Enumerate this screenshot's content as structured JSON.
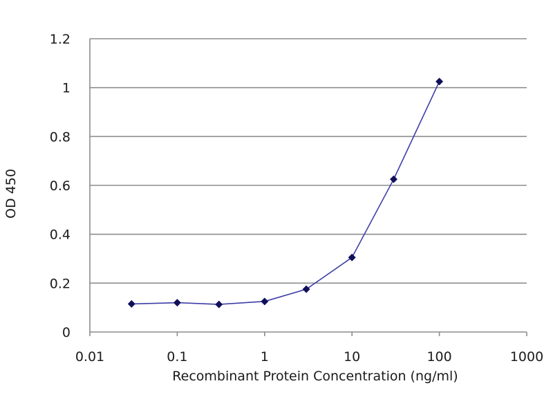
{
  "chart_data": {
    "type": "line",
    "xscale": "log",
    "xlabel": "Recombinant Protein Concentration (ng/ml)",
    "ylabel": "OD 450",
    "xlim": [
      0.01,
      1000
    ],
    "ylim": [
      0,
      1.2
    ],
    "x_ticks": [
      "0.01",
      "0.1",
      "1",
      "10",
      "100",
      "1000"
    ],
    "y_ticks": [
      "0",
      "0.2",
      "0.4",
      "0.6",
      "0.8",
      "1",
      "1.2"
    ],
    "grid": "horizontal",
    "series": [
      {
        "color": "#3d3da8",
        "marker_color": "#10105a",
        "points": [
          {
            "x": 0.03,
            "y": 0.115
          },
          {
            "x": 0.1,
            "y": 0.12
          },
          {
            "x": 0.3,
            "y": 0.113
          },
          {
            "x": 1,
            "y": 0.125
          },
          {
            "x": 3,
            "y": 0.175
          },
          {
            "x": 10,
            "y": 0.305
          },
          {
            "x": 30,
            "y": 0.625
          },
          {
            "x": 100,
            "y": 1.025
          }
        ]
      }
    ]
  }
}
